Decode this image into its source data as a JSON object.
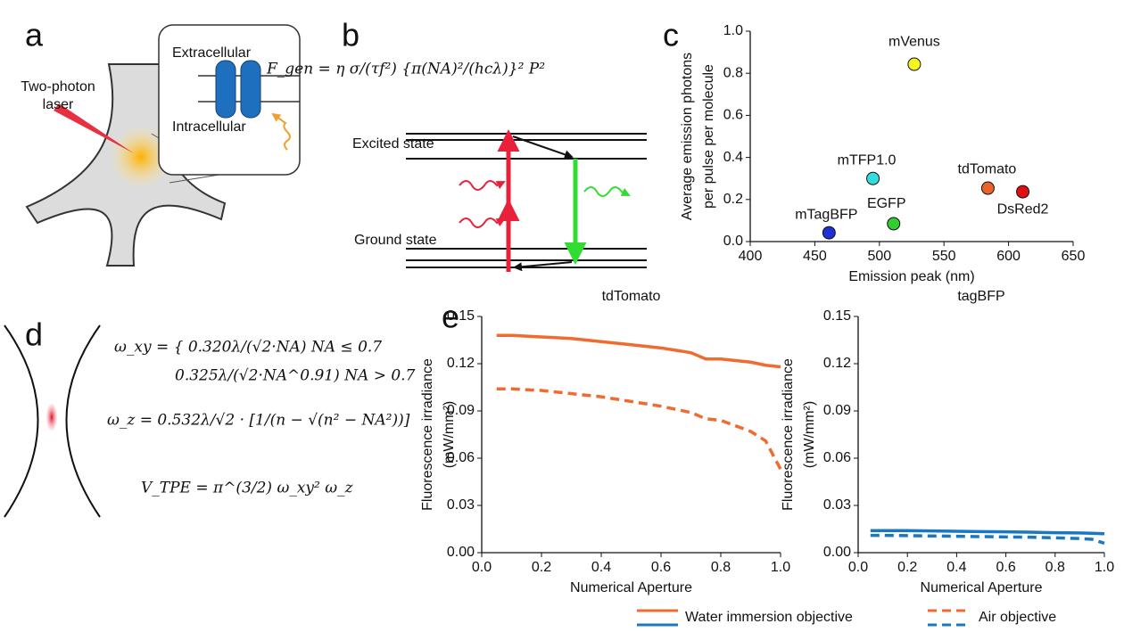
{
  "panel_labels": [
    "a",
    "b",
    "c",
    "d",
    "e"
  ],
  "panel_a": {
    "laser_label": [
      "Two-photon",
      "laser"
    ],
    "extracellular": "Extracellular",
    "intracellular": "Intracellular"
  },
  "panel_b": {
    "equation": "F_gen = η σ/(τf²) {π(NA)²/(hcλ)}² P²",
    "excited_state": "Excited state",
    "ground_state": "Ground state"
  },
  "panel_d": {
    "equations": [
      "ω_xy = { 0.320λ/(√2·NA)      NA ≤ 0.7",
      "0.325λ/(√2·NA^0.91)   NA > 0.7",
      "ω_z = 0.532λ/√2 · [1/(n − √(n² − NA²))]",
      "V_TPE = π^(3/2) ω_xy² ω_z"
    ]
  },
  "legend": [
    {
      "label": "Water immersion objective",
      "style": "solid"
    },
    {
      "label": "Air objective",
      "style": "dashed"
    }
  ],
  "chart_data": [
    {
      "type": "scatter",
      "x_label": "Emission peak (nm)",
      "y_label": [
        "Average emission photons",
        "per pulse per molecule"
      ],
      "point_labels": [
        "mTagBFP",
        "EGFP",
        "mTFP1.0",
        "mVenus",
        "tdTomato",
        "DsRed2"
      ],
      "x": [
        461,
        511,
        495,
        527,
        584,
        611
      ],
      "values": [
        0.042,
        0.085,
        0.3,
        0.843,
        0.254,
        0.237
      ],
      "colors": [
        "#1f2fd6",
        "#33cc33",
        "#33dddd",
        "#f5f520",
        "#e8642a",
        "#e01010"
      ],
      "xlim": [
        400,
        650
      ],
      "xticks": [
        400,
        450,
        500,
        550,
        600,
        650
      ],
      "ylim": [
        0,
        1
      ],
      "yticks": [
        {
          "value": 0,
          "label": "0.0"
        },
        0.2,
        0.4,
        0.6,
        0.8,
        {
          "value": 1,
          "label": "1.0"
        }
      ]
    },
    {
      "type": "line",
      "title": "tdTomato",
      "x_label": "Numerical Aperture",
      "y_label": [
        "Fluorescence irradiance",
        "(mW/mm²)"
      ],
      "x": [
        0.05,
        0.1,
        0.2,
        0.3,
        0.4,
        0.5,
        0.6,
        0.7,
        0.75,
        0.8,
        0.9,
        0.95,
        1.0
      ],
      "series": [
        {
          "color": "#f06b2f",
          "style": "solid",
          "values": [
            0.138,
            0.138,
            0.137,
            0.136,
            0.134,
            0.132,
            0.13,
            0.127,
            0.123,
            0.123,
            0.121,
            0.119,
            0.118
          ]
        },
        {
          "color": "#f06b2f",
          "style": "dashed",
          "values": [
            0.104,
            0.104,
            0.103,
            0.101,
            0.099,
            0.096,
            0.093,
            0.089,
            0.085,
            0.084,
            0.077,
            0.071,
            0.053
          ]
        }
      ],
      "xlim": [
        0,
        1
      ],
      "xticks": [
        {
          "value": 0,
          "label": "0.0"
        },
        0.2,
        0.4,
        0.6,
        0.8,
        {
          "value": 1,
          "label": "1.0"
        }
      ],
      "ylim": [
        0,
        0.15
      ],
      "yticks": [
        {
          "value": 0,
          "label": "0.00"
        },
        0.03,
        0.06,
        0.09,
        0.12,
        0.15
      ]
    },
    {
      "type": "line",
      "title": "tagBFP",
      "x_label": "Numerical Aperture",
      "y_label": [
        "Fluorescence irradiance",
        "(mW/mm²)"
      ],
      "x": [
        0.05,
        0.1,
        0.2,
        0.3,
        0.4,
        0.5,
        0.6,
        0.7,
        0.75,
        0.8,
        0.9,
        0.95,
        1.0
      ],
      "series": [
        {
          "color": "#1a78c2",
          "style": "solid",
          "values": [
            0.014,
            0.014,
            0.014,
            0.0138,
            0.0136,
            0.0134,
            0.0132,
            0.013,
            0.0128,
            0.0127,
            0.0125,
            0.0123,
            0.012
          ]
        },
        {
          "color": "#1a78c2",
          "style": "dashed",
          "values": [
            0.011,
            0.011,
            0.0108,
            0.0106,
            0.0104,
            0.0102,
            0.01,
            0.0098,
            0.0096,
            0.0094,
            0.009,
            0.0085,
            0.006
          ]
        }
      ],
      "xlim": [
        0,
        1
      ],
      "xticks": [
        {
          "value": 0,
          "label": "0.0"
        },
        0.2,
        0.4,
        0.6,
        0.8,
        {
          "value": 1,
          "label": "1.0"
        }
      ],
      "ylim": [
        0,
        0.15
      ],
      "yticks": [
        {
          "value": 0,
          "label": "0.00"
        },
        0.03,
        0.06,
        0.09,
        0.12,
        0.15
      ]
    }
  ]
}
